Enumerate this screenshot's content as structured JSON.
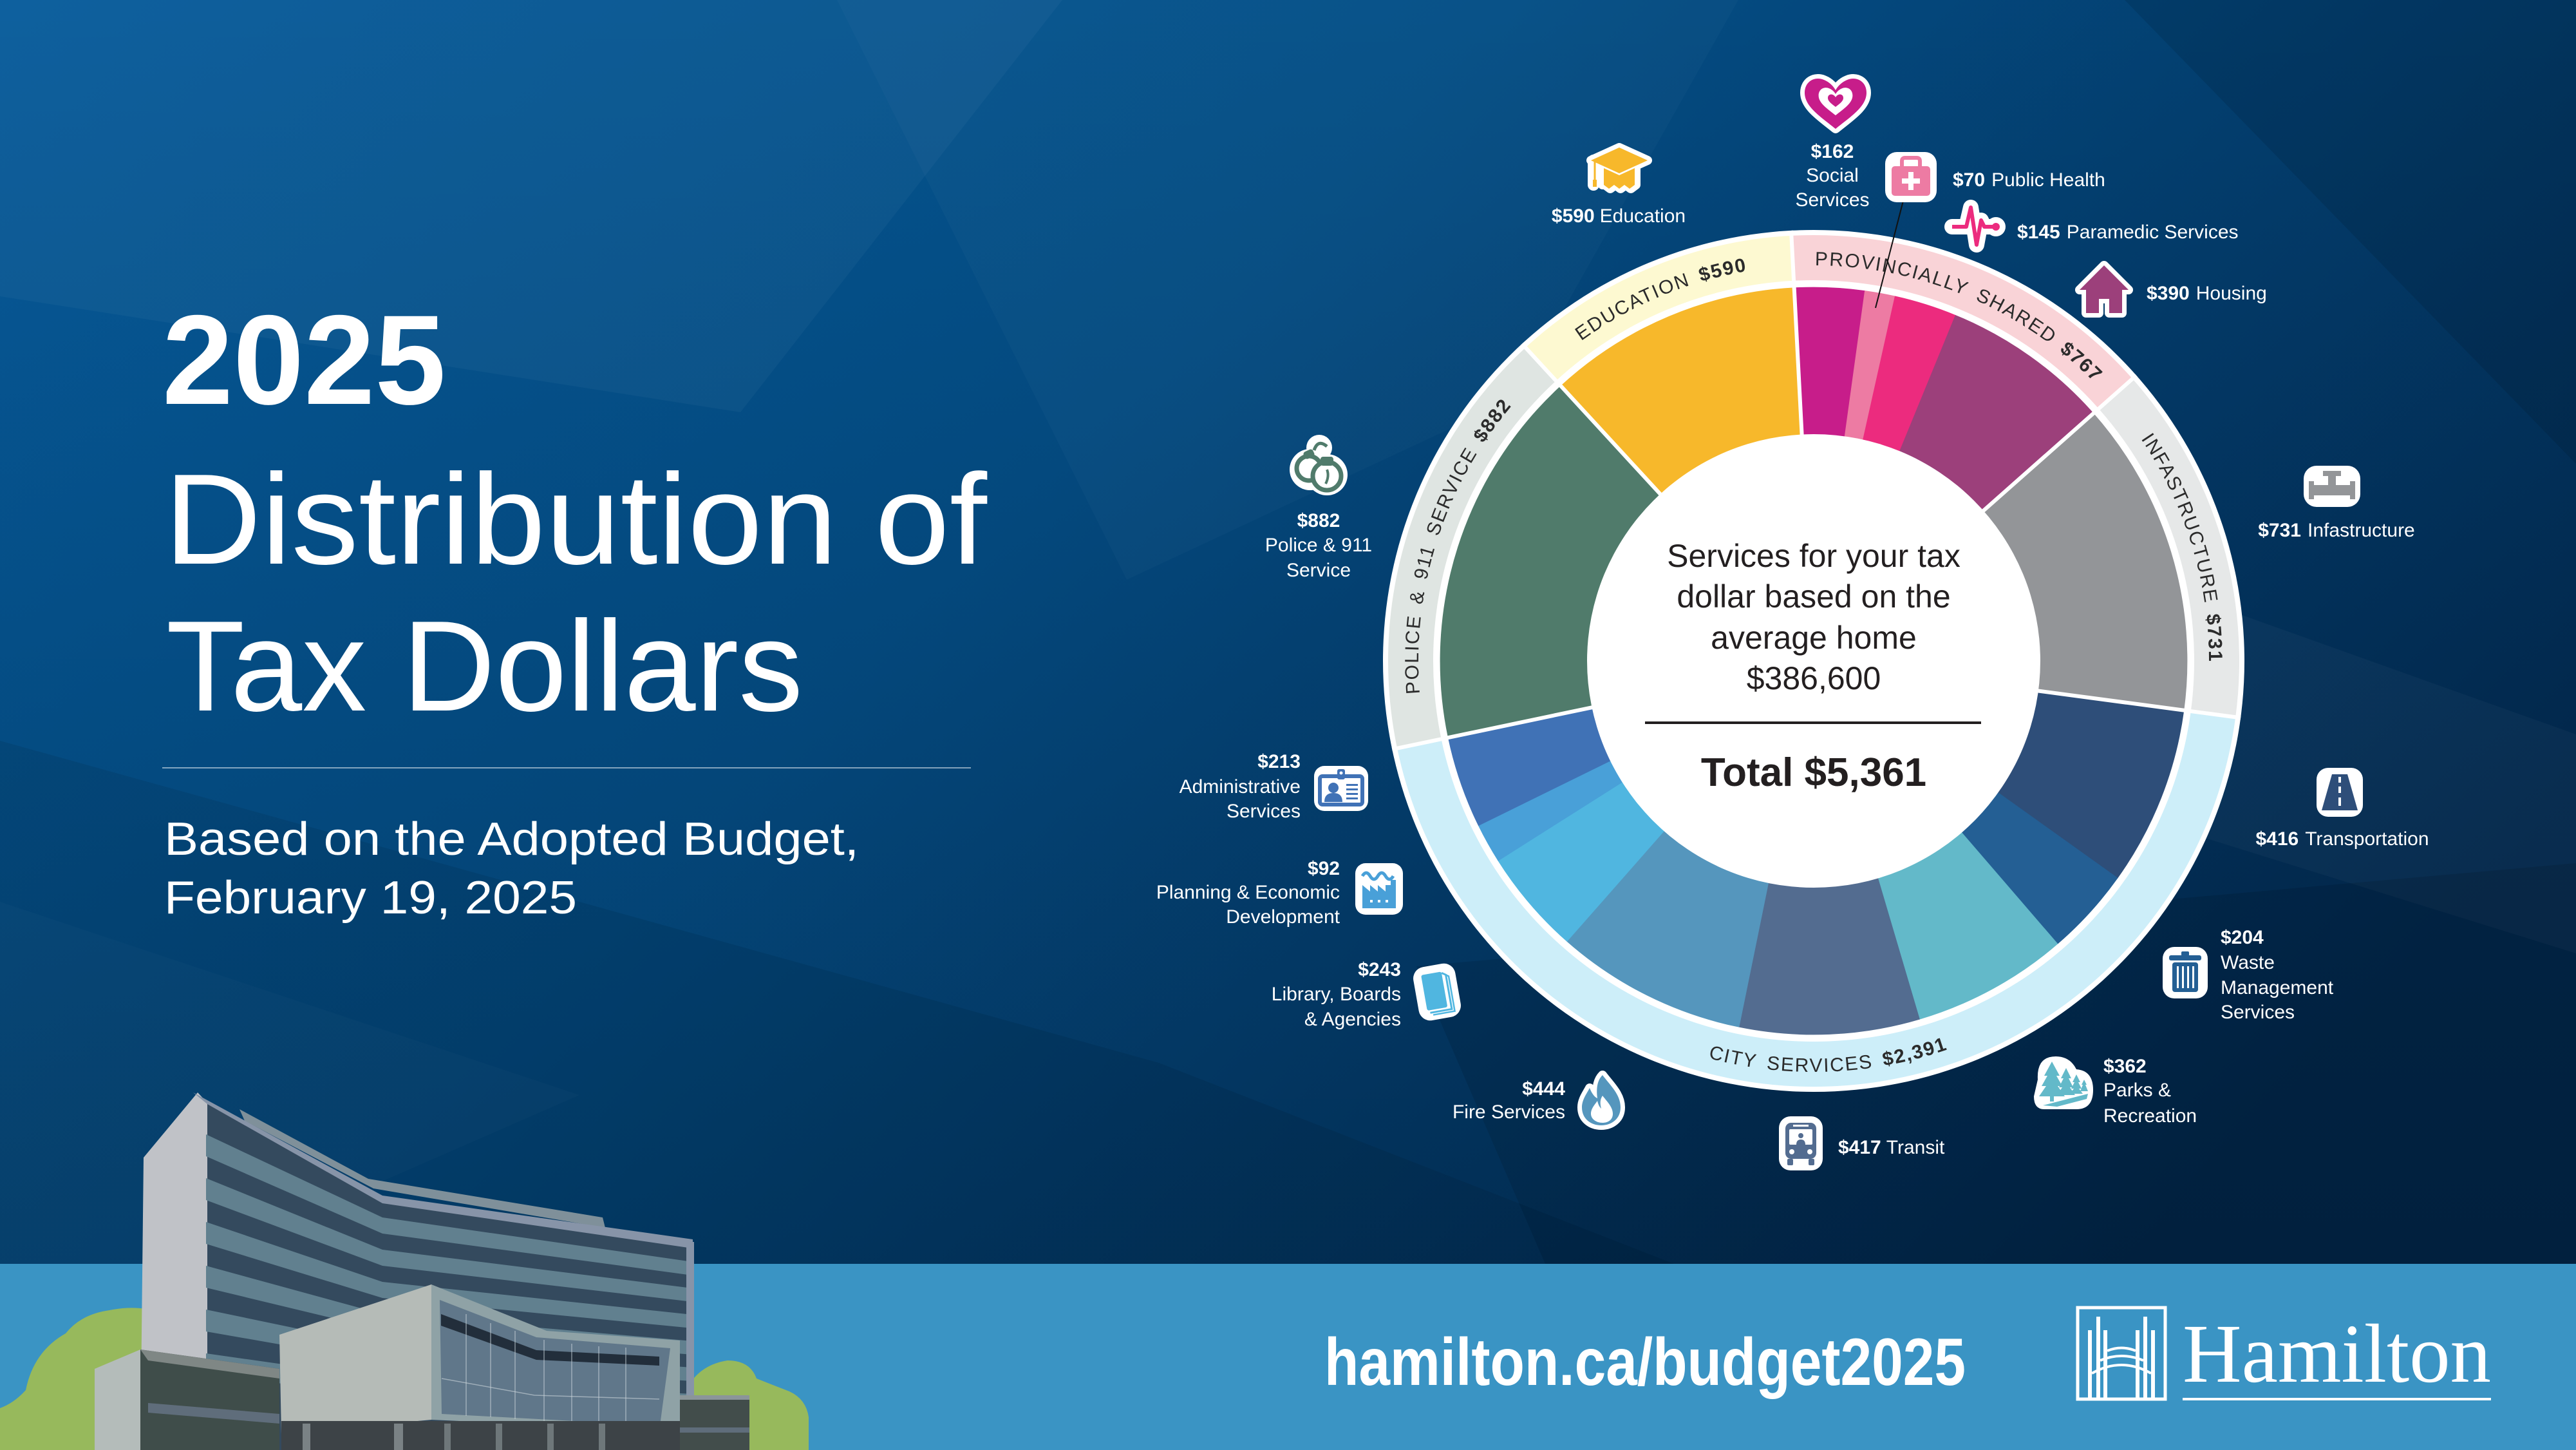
{
  "header": {
    "year": "2025",
    "title_line1": "Distribution of",
    "title_line2": "Tax Dollars",
    "subtitle_line1": "Based on the Adopted Budget,",
    "subtitle_line2": "February 19, 2025"
  },
  "center": {
    "line1": "Services for your tax",
    "line2": "dollar based on the",
    "line3": "average home",
    "line4": "$386,600",
    "total": "Total $5,361"
  },
  "footer": {
    "url": "hamilton.ca/budget2025",
    "logo_text": "Hamilton"
  },
  "colors": {
    "background_left": "#05599a",
    "background_right": "#022f59",
    "banner": "#3a94c4",
    "text_dark": "#231f20",
    "tree_green": "#97b95c"
  },
  "chart_data": {
    "type": "pie",
    "variant": "donut",
    "title": "2025 Distribution of Tax Dollars",
    "subtitle": "Based on the Adopted Budget, February 19, 2025",
    "center_label": "Services for your tax dollar based on the average home $386,600",
    "total": 5361,
    "total_label": "Total $5,361",
    "start_angle": -3,
    "legend_position": "callouts around donut",
    "categories": [
      "Social Services",
      "Public Health",
      "Paramedic Services",
      "Housing",
      "Infastructure",
      "Transportation",
      "Waste Management Services",
      "Parks & Recreation",
      "Transit",
      "Fire Services",
      "Library, Boards & Agencies",
      "Planning & Economic Development",
      "Administrative Services",
      "Police & 911 Service",
      "Education"
    ],
    "values": [
      162,
      70,
      145,
      390,
      731,
      416,
      204,
      362,
      417,
      444,
      243,
      92,
      213,
      882,
      590
    ],
    "colors": [
      "#c71d8a",
      "#ed7ba3",
      "#ec2b7e",
      "#9c407b",
      "#939598",
      "#2e4e79",
      "#245f94",
      "#63b9c9",
      "#536c90",
      "#5596bd",
      "#50b6e0",
      "#49a0d8",
      "#4072b6",
      "#507b6b",
      "#f7b82b"
    ],
    "segments": [
      {
        "name": "Social Services",
        "slug": "social-services",
        "value": 162,
        "amount": "$162",
        "lines": [
          "Social",
          "Services"
        ],
        "color": "#c71d8a",
        "icon": "heart-hands-icon",
        "group": "Provincially Shared"
      },
      {
        "name": "Public Health",
        "slug": "public-health",
        "value": 70,
        "amount": "$70",
        "lines": [
          "Public Health"
        ],
        "color": "#ed7ba3",
        "icon": "medical-bag-icon",
        "group": "Provincially Shared"
      },
      {
        "name": "Paramedic Services",
        "slug": "paramedic-services",
        "value": 145,
        "amount": "$145",
        "lines": [
          "Paramedic Services"
        ],
        "color": "#ec2b7e",
        "icon": "heartbeat-icon",
        "group": "Provincially Shared"
      },
      {
        "name": "Housing",
        "slug": "housing",
        "value": 390,
        "amount": "$390",
        "lines": [
          "Housing"
        ],
        "color": "#9c407b",
        "icon": "house-icon",
        "group": "Provincially Shared"
      },
      {
        "name": "Infastructure",
        "slug": "infastructure",
        "value": 731,
        "amount": "$731",
        "lines": [
          "Infastructure"
        ],
        "color": "#939598",
        "icon": "pipe-icon",
        "group": "Infastructure"
      },
      {
        "name": "Transportation",
        "slug": "transportation",
        "value": 416,
        "amount": "$416",
        "lines": [
          "Transportation"
        ],
        "color": "#2e4e79",
        "icon": "road-icon",
        "group": "City Services"
      },
      {
        "name": "Waste Management Services",
        "slug": "waste-management",
        "value": 204,
        "amount": "$204",
        "lines": [
          "Waste",
          "Management",
          "Services"
        ],
        "color": "#245f94",
        "icon": "trash-can-icon",
        "group": "City Services"
      },
      {
        "name": "Parks & Recreation",
        "slug": "parks-recreation",
        "value": 362,
        "amount": "$362",
        "lines": [
          "Parks &",
          "Recreation"
        ],
        "color": "#63b9c9",
        "icon": "trees-icon",
        "group": "City Services"
      },
      {
        "name": "Transit",
        "slug": "transit",
        "value": 417,
        "amount": "$417",
        "lines": [
          "Transit"
        ],
        "color": "#536c90",
        "icon": "bus-icon",
        "group": "City Services"
      },
      {
        "name": "Fire Services",
        "slug": "fire-services",
        "value": 444,
        "amount": "$444",
        "lines": [
          "Fire Services"
        ],
        "color": "#5596bd",
        "icon": "flame-icon",
        "group": "City Services"
      },
      {
        "name": "Library, Boards & Agencies",
        "slug": "library-boards-agencies",
        "value": 243,
        "amount": "$243",
        "lines": [
          "Library, Boards",
          "& Agencies"
        ],
        "color": "#50b6e0",
        "icon": "book-icon",
        "group": "City Services"
      },
      {
        "name": "Planning & Economic Development",
        "slug": "planning-economic-development",
        "value": 92,
        "amount": "$92",
        "lines": [
          "Planning & Economic",
          "Development"
        ],
        "color": "#49a0d8",
        "icon": "factory-icon",
        "group": "City Services"
      },
      {
        "name": "Administrative Services",
        "slug": "administrative-services",
        "value": 213,
        "amount": "$213",
        "lines": [
          "Administrative",
          "Services"
        ],
        "color": "#4072b6",
        "icon": "id-badge-icon",
        "group": "City Services"
      },
      {
        "name": "Police & 911 Service",
        "slug": "police-911",
        "value": 882,
        "amount": "$882",
        "lines": [
          "Police & 911",
          "Service"
        ],
        "color": "#507b6b",
        "icon": "handcuffs-icon",
        "group": "Police & 911 Service"
      },
      {
        "name": "Education",
        "slug": "education",
        "value": 590,
        "amount": "$590",
        "lines": [
          "Education"
        ],
        "color": "#f7b82b",
        "icon": "graduation-cap-icon",
        "group": "Education"
      }
    ],
    "groups": [
      {
        "name": "Provincially Shared",
        "slug": "provincially-shared",
        "ring_label": "PROVINCIALLY SHARED",
        "amount": "$767",
        "value": 767,
        "ring_color": "#f9d3d7",
        "members": [
          0,
          1,
          2,
          3
        ]
      },
      {
        "name": "Infastructure",
        "slug": "infastructure",
        "ring_label": "INFASTRUCTURE",
        "amount": "$731",
        "value": 731,
        "ring_color": "#e6e8e8",
        "members": [
          4
        ]
      },
      {
        "name": "City Services",
        "slug": "city-services",
        "ring_label": "CITY SERVICES",
        "amount": "$2,391",
        "value": 2391,
        "ring_color": "#cdeef9",
        "members": [
          5,
          6,
          7,
          8,
          9,
          10,
          11,
          12
        ]
      },
      {
        "name": "Police & 911 Service",
        "slug": "police-911",
        "ring_label": "POLICE & 911 SERVICE",
        "amount": "$882",
        "value": 882,
        "ring_color": "#dfe5e2",
        "members": [
          13
        ]
      },
      {
        "name": "Education",
        "slug": "education",
        "ring_label": "EDUCATION",
        "amount": "$590",
        "value": 590,
        "ring_color": "#fdf9d1",
        "members": [
          14
        ]
      }
    ]
  }
}
